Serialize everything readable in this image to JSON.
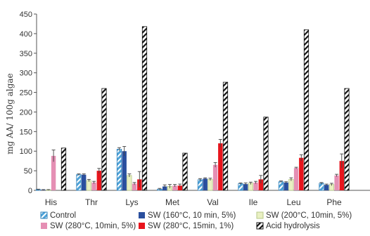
{
  "chart_data": {
    "type": "bar",
    "title": "",
    "xlabel": "",
    "ylabel": "mg AA/ 100g algae",
    "ylim": [
      0,
      450
    ],
    "yticks": [
      0,
      50,
      100,
      150,
      200,
      250,
      300,
      350,
      400,
      450
    ],
    "grid": false,
    "legend_position": "bottom",
    "categories": [
      "His",
      "Thr",
      "Lys",
      "Met",
      "Val",
      "Ile",
      "Leu",
      "Phe"
    ],
    "series": [
      {
        "name": "Control",
        "values": [
          2,
          40,
          105,
          3,
          27,
          17,
          22,
          18
        ],
        "errors": [
          1,
          2,
          4,
          2,
          3,
          2,
          2,
          2
        ],
        "color": "#4fa3d8",
        "pattern": "diag-blue"
      },
      {
        "name": "SW (160°C, 10 min, 5%)",
        "values": [
          1,
          40,
          100,
          10,
          30,
          16,
          20,
          14
        ],
        "errors": [
          1,
          2,
          12,
          4,
          2,
          3,
          2,
          2
        ],
        "color": "#2a4f9e",
        "pattern": "solid"
      },
      {
        "name": "SW (200°C, 10min, 5%)",
        "values": [
          1,
          25,
          38,
          10,
          28,
          18,
          28,
          15
        ],
        "errors": [
          1,
          3,
          4,
          5,
          3,
          3,
          4,
          3
        ],
        "color": "#e9f0c2",
        "pattern": "light"
      },
      {
        "name": "SW (280°C, 10min, 5%)",
        "values": [
          88,
          20,
          17,
          12,
          65,
          20,
          57,
          38
        ],
        "errors": [
          15,
          3,
          3,
          3,
          6,
          3,
          2,
          3
        ],
        "color": "#e58fb4",
        "pattern": "solid"
      },
      {
        "name": "SW (280°C, 15min, 1%)",
        "values": [
          0,
          50,
          28,
          12,
          120,
          28,
          83,
          75
        ],
        "errors": [
          0,
          6,
          20,
          4,
          10,
          10,
          8,
          18
        ],
        "color": "#e8141c",
        "pattern": "solid"
      },
      {
        "name": "Acid hydrolysis",
        "values": [
          108,
          260,
          418,
          95,
          276,
          187,
          410,
          260
        ],
        "errors": [
          0,
          0,
          0,
          0,
          0,
          0,
          0,
          0
        ],
        "color": "#111111",
        "pattern": "diag-black"
      }
    ]
  }
}
